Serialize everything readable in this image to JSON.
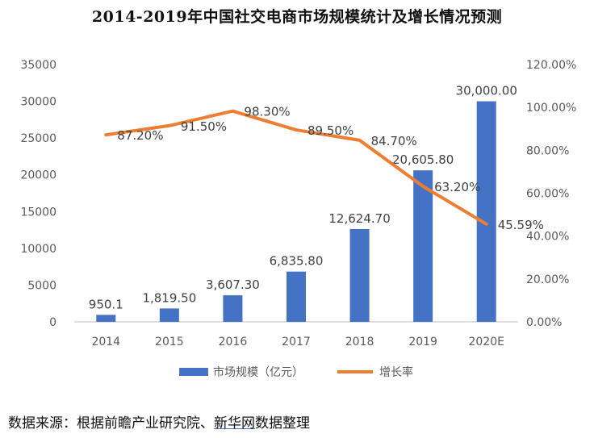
{
  "chart_data": {
    "type": "bar-line-combo",
    "title": "2014-2019年中国社交电商市场规模统计及增长情况预测",
    "categories": [
      "2014",
      "2015",
      "2016",
      "2017",
      "2018",
      "2019",
      "2020E"
    ],
    "series": [
      {
        "name": "市场规模（亿元）",
        "type": "bar",
        "axis": "left",
        "color": "#4472c4",
        "values": [
          950.1,
          1819.5,
          3607.3,
          6835.8,
          12624.7,
          20605.8,
          30000.0
        ],
        "labels": [
          "950.1",
          "1,819.50",
          "3,607.30",
          "6,835.80",
          "12,624.70",
          "20,605.80",
          "30,000.00"
        ]
      },
      {
        "name": "增长率",
        "type": "line",
        "axis": "right",
        "color": "#ed7d31",
        "values": [
          87.2,
          91.5,
          98.3,
          89.5,
          84.7,
          63.2,
          45.59
        ],
        "labels": [
          "87.20%",
          "91.50%",
          "98.30%",
          "89.50%",
          "84.70%",
          "63.20%",
          "45.59%"
        ]
      }
    ],
    "y_left": {
      "min": 0,
      "max": 35000,
      "ticks": [
        "0",
        "5000",
        "10000",
        "15000",
        "20000",
        "25000",
        "30000",
        "35000"
      ]
    },
    "y_right": {
      "min": 0,
      "max": 120,
      "ticks": [
        "0.00%",
        "20.00%",
        "40.00%",
        "60.00%",
        "80.00%",
        "100.00%",
        "120.00%"
      ]
    },
    "legend_position": "bottom"
  },
  "source": {
    "prefix": "数据来源：根据前瞻产业研究院、",
    "link": "新华网",
    "suffix": "数据整理"
  }
}
